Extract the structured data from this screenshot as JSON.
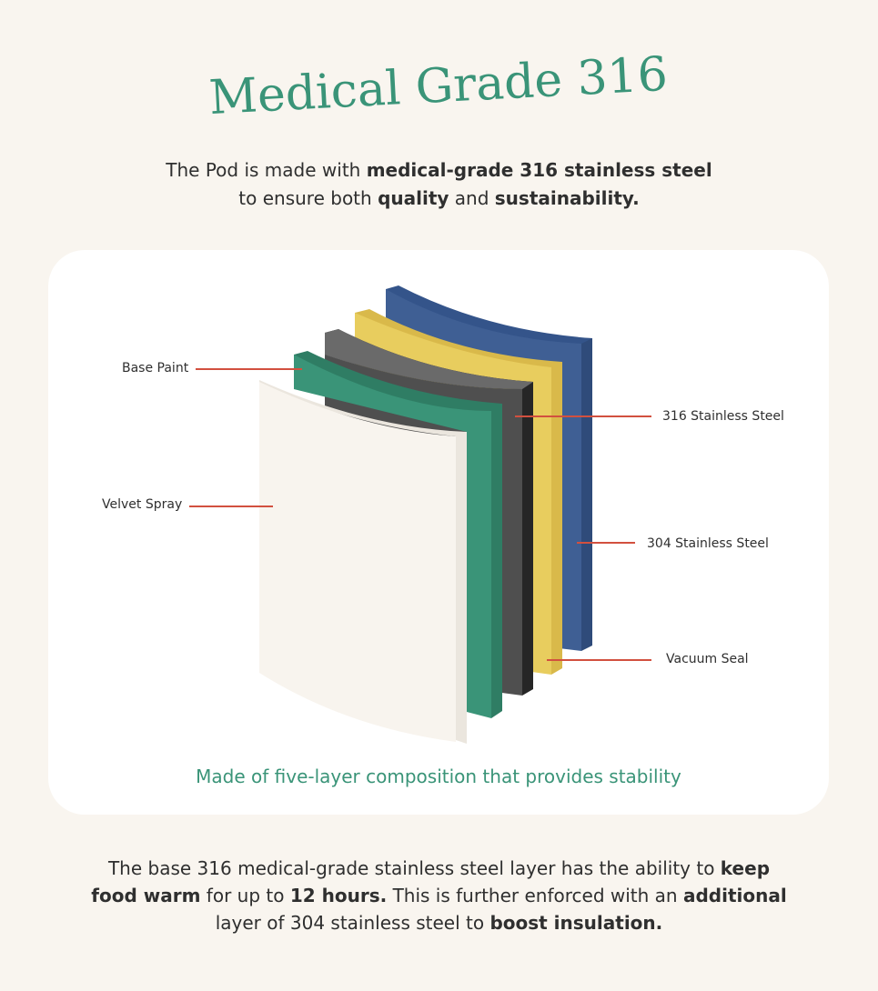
{
  "title": "Medical Grade 316",
  "intro": {
    "t1": "The Pod is made with ",
    "b1": "medical-grade 316 stainless steel",
    "t2": "to ensure both ",
    "b2": "quality",
    "t3": " and ",
    "b3": "sustainability."
  },
  "diagram": {
    "labels": {
      "base_paint": "Base Paint",
      "velvet_spray": "Velvet Spray",
      "steel_316": "316 Stainless Steel",
      "steel_304": "304 Stainless Steel",
      "vacuum_seal": "Vacuum Seal"
    },
    "caption": "Made of five-layer composition that provides stability"
  },
  "outro": {
    "t1": "The base 316 medical-grade stainless steel layer has the ability to ",
    "b1": "keep food warm",
    "t2": " for up to ",
    "b2": "12 hours.",
    "t3": " This is further enforced with an ",
    "b3": "additional",
    "t4": " layer of 304 stainless steel to ",
    "b4": "boost insulation."
  },
  "colors": {
    "title": "#3a9478",
    "blue_layer": "#3f5f94",
    "yellow_layer": "#e8cd5e",
    "gray_layer": "#4f4f4f",
    "green_layer": "#3a9478",
    "cream_layer": "#f8f4ee",
    "leader_line": "#d2503f",
    "caption": "#3a9478"
  }
}
